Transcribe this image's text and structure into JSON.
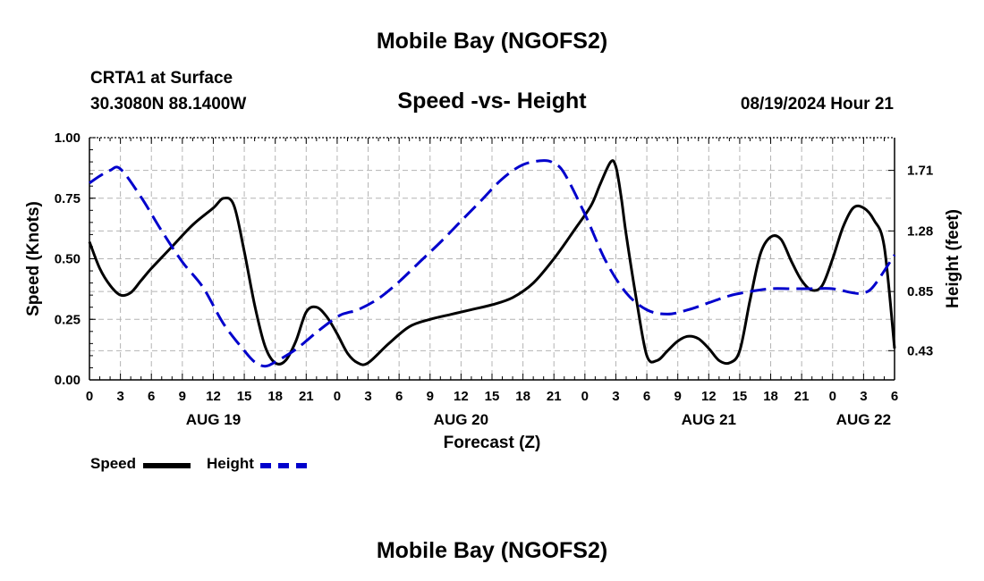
{
  "header": {
    "title": "Mobile Bay (NGOFS2)",
    "station": "CRTA1 at Surface",
    "coordinates": "30.3080N  88.1400W",
    "subtitle": "Speed -vs- Height",
    "datetime": "08/19/2024 Hour 21"
  },
  "footer": {
    "title": "Mobile Bay (NGOFS2)"
  },
  "legend": {
    "speed_label": "Speed",
    "height_label": "Height"
  },
  "colors": {
    "speed": "#000000",
    "height": "#0000cc",
    "grid": "#b4b4b4"
  },
  "chart_data": {
    "type": "line",
    "title": "Speed -vs- Height",
    "xlabel": "Forecast (Z)",
    "ylabel": "Speed (Knots)",
    "y2label": "Height (feet)",
    "xlim": [
      0,
      78
    ],
    "ylim": [
      0,
      1.0
    ],
    "y2lim": [
      0.2227,
      1.9423
    ],
    "x_ticks": [
      0,
      3,
      6,
      9,
      12,
      15,
      18,
      21,
      24,
      27,
      30,
      33,
      36,
      39,
      42,
      45,
      48,
      51,
      54,
      57,
      60,
      63,
      66,
      69,
      72,
      75,
      78
    ],
    "x_tick_labels": [
      "0",
      "3",
      "6",
      "9",
      "12",
      "15",
      "18",
      "21",
      "0",
      "3",
      "6",
      "9",
      "12",
      "15",
      "18",
      "21",
      "0",
      "3",
      "6",
      "9",
      "12",
      "15",
      "18",
      "21",
      "0",
      "3",
      "6"
    ],
    "date_labels": [
      {
        "x": 12,
        "label": "AUG 19"
      },
      {
        "x": 36,
        "label": "AUG 20"
      },
      {
        "x": 60,
        "label": "AUG 21"
      },
      {
        "x": 75,
        "label": "AUG 22"
      }
    ],
    "y_ticks": [
      0.0,
      0.25,
      0.5,
      0.75,
      1.0
    ],
    "y_tick_labels": [
      "0.00",
      "0.25",
      "0.50",
      "0.75",
      "1.00"
    ],
    "y2_ticks": [
      0.43,
      0.85,
      1.28,
      1.71
    ],
    "y2_tick_labels": [
      "0.43",
      "0.85",
      "1.28",
      "1.71"
    ],
    "grid": true,
    "series": [
      {
        "name": "Speed",
        "axis": "left",
        "style": "solid",
        "x": [
          0,
          1,
          2,
          3,
          4,
          5,
          6,
          8,
          10,
          12,
          13,
          14,
          15,
          16,
          17,
          18,
          19,
          20,
          21,
          22,
          23,
          24,
          25,
          26,
          27,
          29,
          31,
          33,
          35,
          37,
          39,
          41,
          43,
          45,
          47,
          48.6,
          49.5,
          50.5,
          51,
          51.5,
          52,
          53,
          54,
          55,
          56,
          57,
          58,
          59,
          60,
          61,
          62,
          63,
          64,
          65,
          66,
          67,
          68,
          69,
          70,
          71,
          72,
          73,
          74,
          75,
          76,
          77,
          78
        ],
        "y": [
          0.57,
          0.46,
          0.39,
          0.35,
          0.36,
          0.41,
          0.46,
          0.55,
          0.64,
          0.71,
          0.75,
          0.72,
          0.53,
          0.31,
          0.14,
          0.07,
          0.08,
          0.16,
          0.28,
          0.3,
          0.26,
          0.19,
          0.11,
          0.07,
          0.07,
          0.15,
          0.22,
          0.25,
          0.27,
          0.29,
          0.31,
          0.34,
          0.4,
          0.5,
          0.62,
          0.72,
          0.81,
          0.9,
          0.88,
          0.76,
          0.6,
          0.33,
          0.1,
          0.08,
          0.12,
          0.16,
          0.18,
          0.17,
          0.13,
          0.08,
          0.07,
          0.12,
          0.33,
          0.52,
          0.59,
          0.58,
          0.49,
          0.41,
          0.37,
          0.39,
          0.5,
          0.63,
          0.71,
          0.71,
          0.66,
          0.55,
          0.13
        ]
      },
      {
        "name": "Height",
        "axis": "right",
        "style": "dashed",
        "x": [
          0,
          1,
          2,
          3,
          5,
          7,
          9,
          11,
          13,
          15,
          16,
          17,
          18,
          20,
          22,
          24,
          25,
          26,
          28,
          30,
          32,
          34,
          36,
          38,
          40,
          42,
          44,
          45,
          46,
          48,
          50,
          52,
          54,
          56,
          58,
          60,
          62,
          64,
          66,
          68,
          70,
          72,
          74,
          75,
          76,
          78
        ],
        "y": [
          1.62,
          1.67,
          1.71,
          1.72,
          1.52,
          1.28,
          1.06,
          0.88,
          0.62,
          0.43,
          0.35,
          0.32,
          0.35,
          0.44,
          0.56,
          0.67,
          0.7,
          0.72,
          0.8,
          0.92,
          1.06,
          1.2,
          1.35,
          1.5,
          1.65,
          1.75,
          1.78,
          1.76,
          1.69,
          1.4,
          1.07,
          0.84,
          0.72,
          0.69,
          0.72,
          0.77,
          0.82,
          0.85,
          0.87,
          0.87,
          0.87,
          0.87,
          0.84,
          0.84,
          0.89,
          1.11
        ]
      }
    ]
  }
}
